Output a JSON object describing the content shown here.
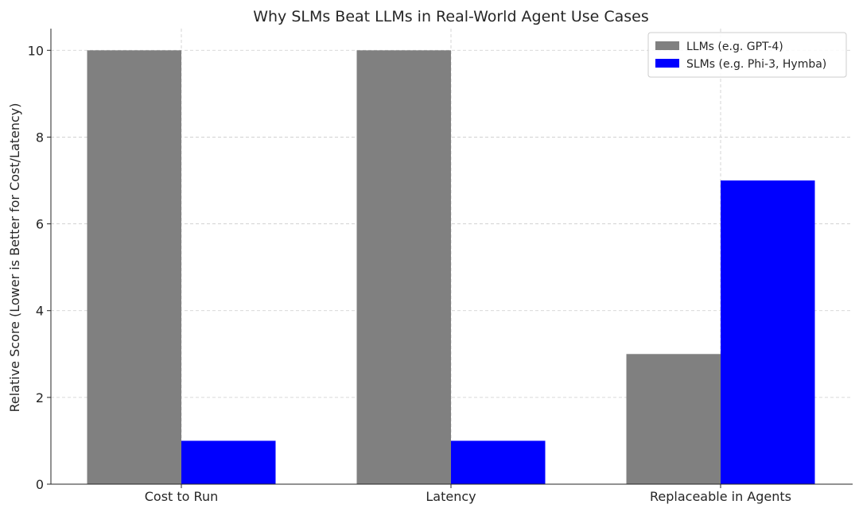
{
  "chart_data": {
    "type": "bar",
    "title": "Why SLMs Beat LLMs in Real-World Agent Use Cases",
    "xlabel": "",
    "ylabel": "Relative Score (Lower is Better for Cost/Latency)",
    "categories": [
      "Cost to Run",
      "Latency",
      "Replaceable in Agents"
    ],
    "series": [
      {
        "name": "LLMs (e.g. GPT-4)",
        "values": [
          10,
          10,
          3
        ],
        "color": "#808080"
      },
      {
        "name": "SLMs (e.g. Phi-3, Hymba)",
        "values": [
          1,
          1,
          7
        ],
        "color": "#0000ff"
      }
    ],
    "ylim": [
      0,
      10.5
    ],
    "yticks": [
      0,
      2,
      4,
      6,
      8,
      10
    ],
    "grid": true,
    "legend_position": "top-right"
  }
}
